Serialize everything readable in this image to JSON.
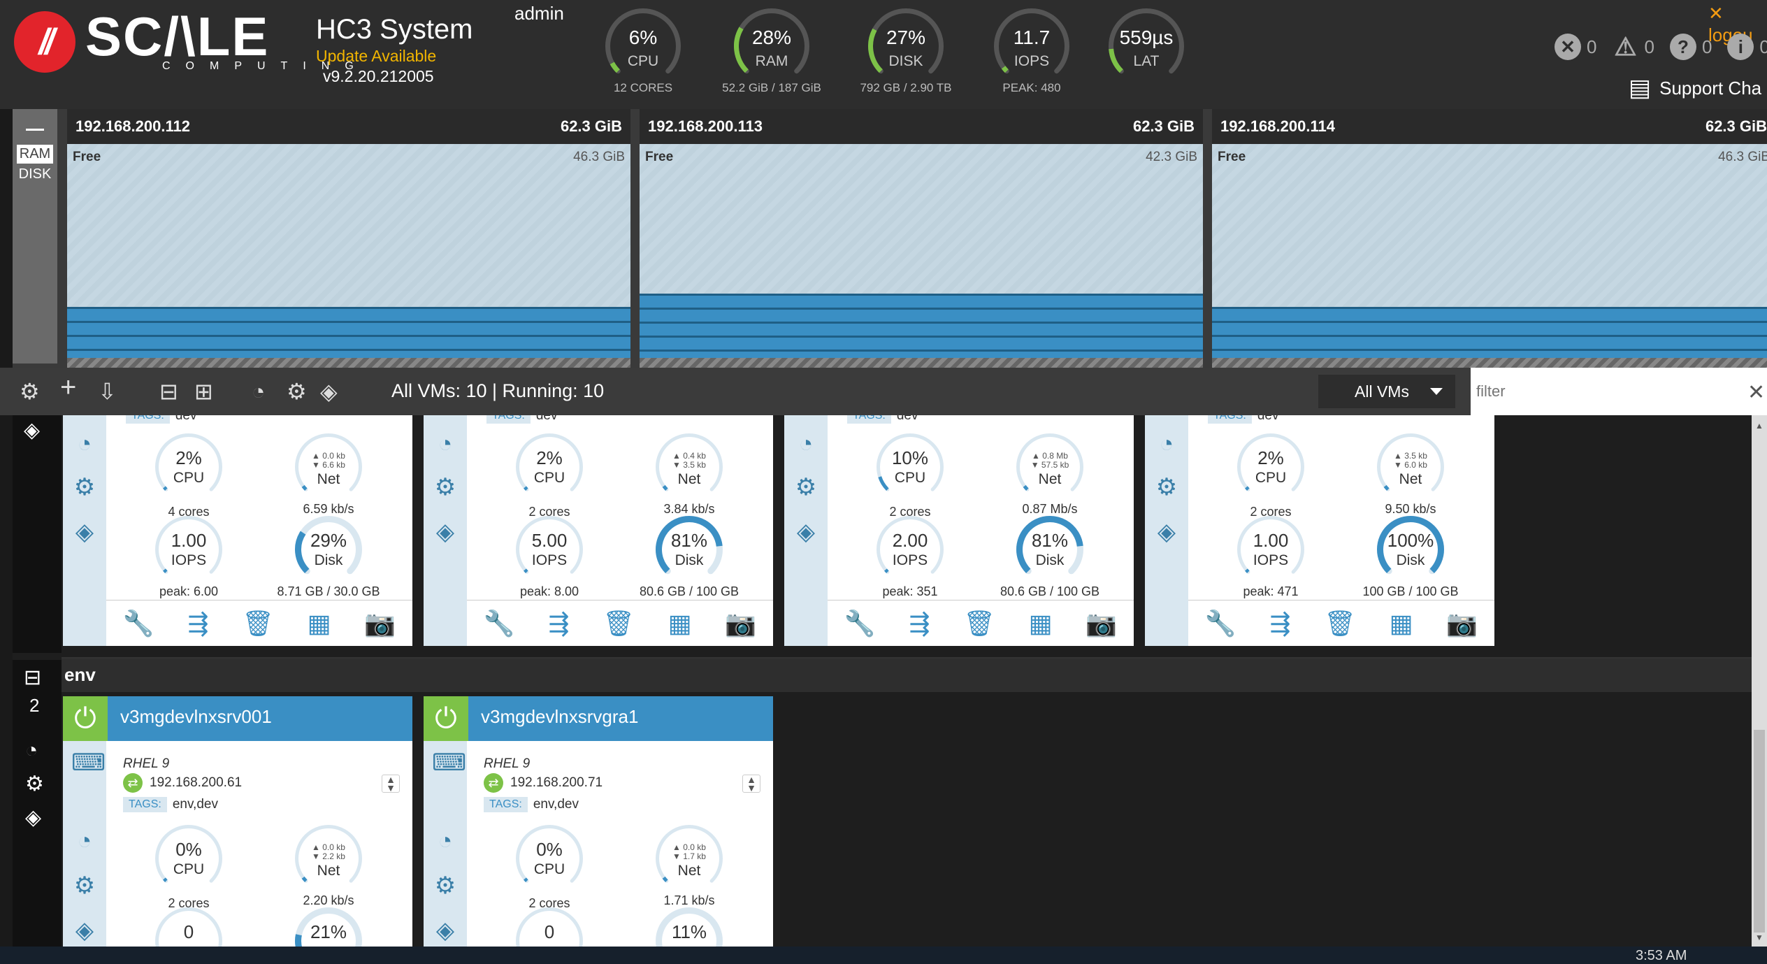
{
  "header": {
    "system_title": "HC3 System",
    "update_text": "Update Available",
    "version": "v9.2.20.212005",
    "user": "admin",
    "logout": "logou",
    "support": "Support Cha",
    "counts": {
      "errors": "0",
      "warnings": "0",
      "unknown": "0",
      "info": "0"
    }
  },
  "gauges": [
    {
      "value": "6%",
      "label": "CPU",
      "sub": "12 CORES",
      "fill": 0.06,
      "color": "#7dc247"
    },
    {
      "value": "28%",
      "label": "RAM",
      "sub": "52.2 GiB / 187 GiB",
      "fill": 0.28,
      "color": "#7dc247"
    },
    {
      "value": "27%",
      "label": "DISK",
      "sub": "792 GB / 2.90 TB",
      "fill": 0.27,
      "color": "#7dc247"
    },
    {
      "value": "11.7",
      "label": "IOPS",
      "sub": "PEAK: 480",
      "fill": 0.03,
      "color": "#7dc247"
    },
    {
      "value": "559µs",
      "label": "LAT",
      "sub": "",
      "fill": 0.15,
      "color": "#7dc247"
    }
  ],
  "node_toggle": {
    "ram": "RAM",
    "disk": "DISK"
  },
  "nodes": [
    {
      "ip": "192.168.200.112",
      "total": "62.3 GiB",
      "free_label": "Free",
      "free": "46.3 GiB",
      "used_fraction": 0.257
    },
    {
      "ip": "192.168.200.113",
      "total": "62.3 GiB",
      "free_label": "Free",
      "free": "42.3 GiB",
      "used_fraction": 0.321
    },
    {
      "ip": "192.168.200.114",
      "total": "62.3 GiB",
      "free_label": "Free",
      "free": "46.3 GiB",
      "used_fraction": 0.257
    }
  ],
  "toolbar": {
    "status": "All VMs: 10 | Running: 10",
    "select_value": "All VMs",
    "filter_placeholder": "filter"
  },
  "top_cards": [
    {
      "tags_value": "dev",
      "cpu": "2%",
      "cpu_label": "CPU",
      "cores": "4 cores",
      "net_up": "▲ 0.0 kb",
      "net_dn": "▼ 6.6 kb",
      "net_label": "Net",
      "net_rate": "6.59 kb/s",
      "iops": "1.00",
      "iops_label": "IOPS",
      "peak": "peak: 6.00",
      "disk": "29%",
      "disk_label": "Disk",
      "disk_sub": "8.71 GB / 30.0 GB",
      "cpu_fill": 0.02,
      "disk_fill": 0.29
    },
    {
      "tags_value": "dev",
      "cpu": "2%",
      "cpu_label": "CPU",
      "cores": "2 cores",
      "net_up": "▲ 0.4 kb",
      "net_dn": "▼ 3.5 kb",
      "net_label": "Net",
      "net_rate": "3.84 kb/s",
      "iops": "5.00",
      "iops_label": "IOPS",
      "peak": "peak: 8.00",
      "disk": "81%",
      "disk_label": "Disk",
      "disk_sub": "80.6 GB / 100 GB",
      "cpu_fill": 0.02,
      "disk_fill": 0.81
    },
    {
      "tags_value": "dev",
      "cpu": "10%",
      "cpu_label": "CPU",
      "cores": "2 cores",
      "net_up": "▲ 0.8 Mb",
      "net_dn": "▼ 57.5 kb",
      "net_label": "Net",
      "net_rate": "0.87 Mb/s",
      "iops": "2.00",
      "iops_label": "IOPS",
      "peak": "peak: 351",
      "disk": "81%",
      "disk_label": "Disk",
      "disk_sub": "80.6 GB / 100 GB",
      "cpu_fill": 0.1,
      "disk_fill": 0.81
    },
    {
      "tags_value": "dev",
      "cpu": "2%",
      "cpu_label": "CPU",
      "cores": "2 cores",
      "net_up": "▲ 3.5 kb",
      "net_dn": "▼ 6.0 kb",
      "net_label": "Net",
      "net_rate": "9.50 kb/s",
      "iops": "1.00",
      "iops_label": "IOPS",
      "peak": "peak: 471",
      "disk": "100%",
      "disk_label": "Disk",
      "disk_sub": "100 GB / 100 GB",
      "cpu_fill": 0.02,
      "disk_fill": 1.0
    }
  ],
  "env_group": {
    "name": "env",
    "count": "2",
    "cards": [
      {
        "name": "v3mgdevlnxsrv001",
        "os": "RHEL 9",
        "ip": "192.168.200.61",
        "tags_label": "TAGS:",
        "tags": "env,dev",
        "cpu": "0%",
        "cpu_label": "CPU",
        "cores": "2 cores",
        "net_up": "▲ 0.0 kb",
        "net_dn": "▼ 2.2 kb",
        "net_label": "Net",
        "net_rate": "2.20 kb/s",
        "iops": "0",
        "disk": "21%",
        "disk_fill": 0.21
      },
      {
        "name": "v3mgdevlnxsrvgra1",
        "os": "RHEL 9",
        "ip": "192.168.200.71",
        "tags_label": "TAGS:",
        "tags": "env,dev",
        "cpu": "0%",
        "cpu_label": "CPU",
        "cores": "2 cores",
        "net_up": "▲ 0.0 kb",
        "net_dn": "▼ 1.7 kb",
        "net_label": "Net",
        "net_rate": "1.71 kb/s",
        "iops": "0",
        "disk": "11%",
        "disk_fill": 0.11
      }
    ]
  },
  "taskbar": {
    "clock": "3:53 AM"
  }
}
